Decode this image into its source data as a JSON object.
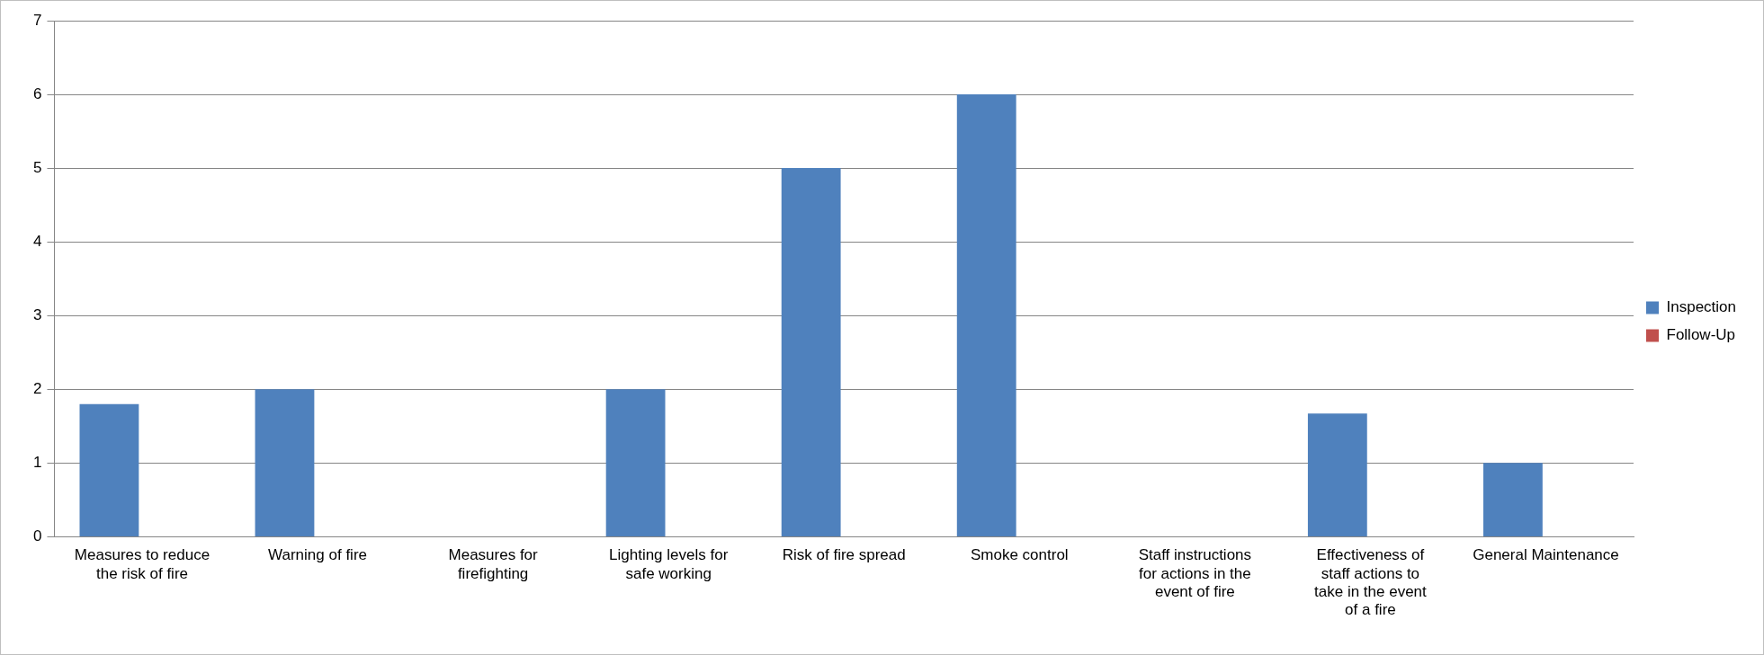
{
  "chart_data": {
    "type": "bar",
    "categories": [
      "Measures to reduce the risk of fire",
      "Warning of fire",
      "Measures for firefighting",
      "Lighting levels for safe working",
      "Risk of fire spread",
      "Smoke control",
      "Staff instructions for actions in the event of fire",
      "Effectiveness of staff actions to take in the event of a fire",
      "General Maintenance"
    ],
    "series": [
      {
        "name": "Inspection",
        "color": "#4f81bd",
        "values": [
          1.8,
          2,
          0,
          2,
          5,
          6,
          0,
          1.67,
          1
        ]
      },
      {
        "name": "Follow-Up",
        "color": "#c0504d",
        "values": [
          0,
          0,
          0,
          0,
          0,
          0,
          0,
          0,
          0
        ]
      }
    ],
    "ylim": [
      0,
      7
    ],
    "yticks": [
      0,
      1,
      2,
      3,
      4,
      5,
      6,
      7
    ],
    "grid": "y",
    "legend": "right"
  }
}
